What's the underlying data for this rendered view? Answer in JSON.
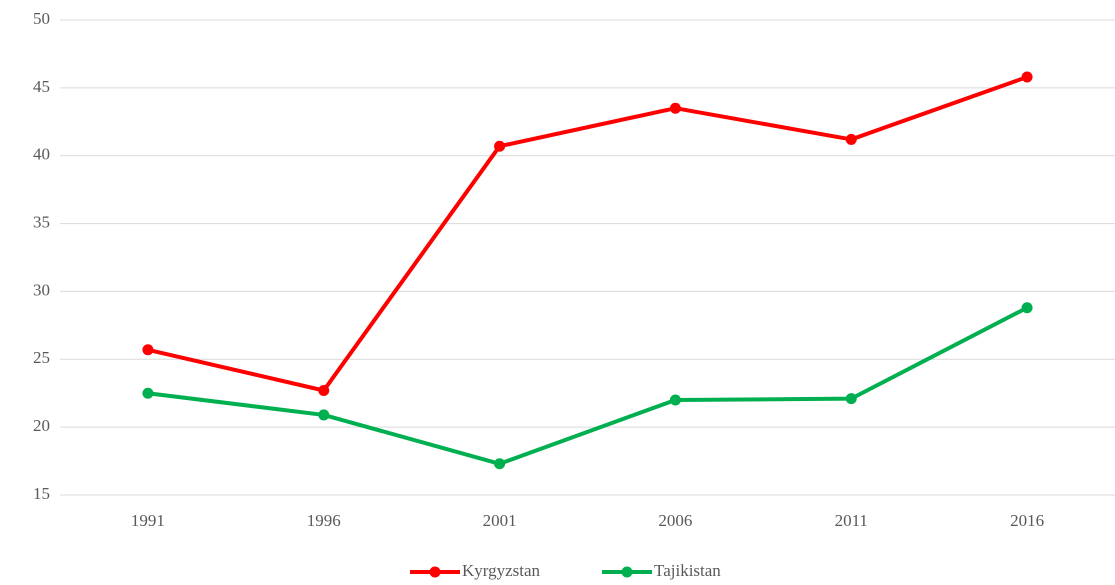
{
  "chart_data": {
    "type": "line",
    "categories": [
      "1991",
      "1996",
      "2001",
      "2006",
      "2011",
      "2016"
    ],
    "series": [
      {
        "name": "Kyrgyzstan",
        "color": "#ff0000",
        "values": [
          25.7,
          22.7,
          40.7,
          43.5,
          41.2,
          45.8
        ]
      },
      {
        "name": "Tajikistan",
        "color": "#00b050",
        "values": [
          22.5,
          20.9,
          17.3,
          22.0,
          22.1,
          28.8
        ]
      }
    ],
    "ylim": [
      15,
      50
    ],
    "yticks": [
      15,
      20,
      25,
      30,
      35,
      40,
      45,
      50
    ],
    "grid": true,
    "legend": "bottom"
  }
}
